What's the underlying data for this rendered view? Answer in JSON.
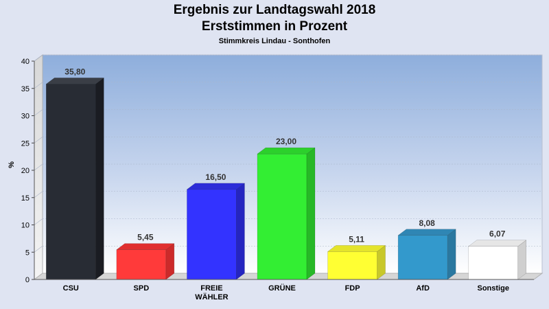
{
  "chart_data": {
    "type": "bar",
    "title": "Ergebnis zur Landtagswahl 2018",
    "subtitle": "Erststimmen in Prozent",
    "subsubtitle": "Stimmkreis Lindau - Sonthofen",
    "ylabel": "%",
    "ylim": [
      0,
      40
    ],
    "yticks": [
      "0",
      "5",
      "10",
      "15",
      "20",
      "25",
      "30",
      "35",
      "40"
    ],
    "categories": [
      "CSU",
      "SPD",
      "FREIE WÄHLER",
      "GRÜNE",
      "FDP",
      "AfD",
      "Sonstige"
    ],
    "category_lines": [
      [
        "CSU"
      ],
      [
        "SPD"
      ],
      [
        "FREIE",
        "WÄHLER"
      ],
      [
        "GRÜNE"
      ],
      [
        "FDP"
      ],
      [
        "AfD"
      ],
      [
        "Sonstige"
      ]
    ],
    "values": [
      35.8,
      5.45,
      16.5,
      23.0,
      5.11,
      8.08,
      6.07
    ],
    "value_labels": [
      "35,80",
      "5,45",
      "16,50",
      "23,00",
      "5,11",
      "8,08",
      "6,07"
    ],
    "colors": [
      "#282c34",
      "#ff3a3a",
      "#3333ff",
      "#33ee33",
      "#ffff33",
      "#3399cc",
      "#ffffff"
    ],
    "side_colors": [
      "#1a1c22",
      "#cc2a2a",
      "#2525c0",
      "#27b827",
      "#c8c82a",
      "#2a78a0",
      "#cfcfcf"
    ],
    "top_colors": [
      "#3a3e46",
      "#e02f2f",
      "#2c2cd8",
      "#2cd02c",
      "#e4e42c",
      "#2f86b4",
      "#e6e6e6"
    ],
    "grid": true,
    "legend": "none"
  }
}
